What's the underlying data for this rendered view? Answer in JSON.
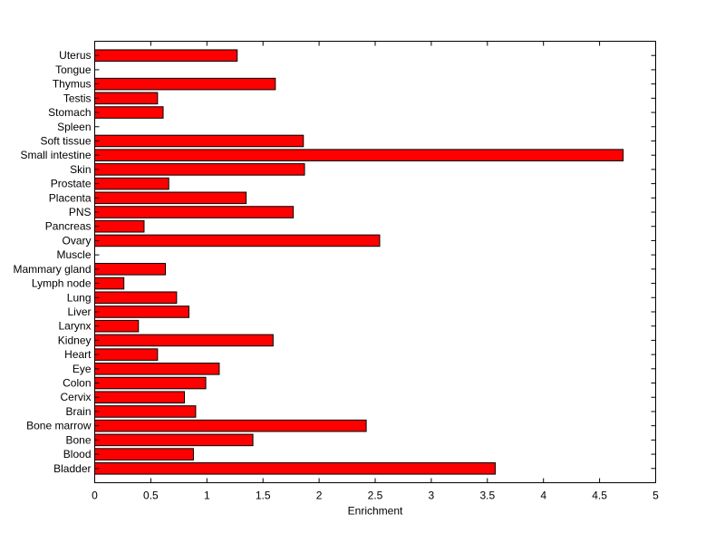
{
  "chart_data": {
    "type": "bar",
    "orientation": "horizontal",
    "title": "",
    "xlabel": "Enrichment",
    "ylabel": "",
    "xlim": [
      0,
      5
    ],
    "xticks": [
      "0",
      "0.5",
      "1",
      "1.5",
      "2",
      "2.5",
      "3",
      "3.5",
      "4",
      "4.5",
      "5"
    ],
    "grid": false,
    "legend": "none",
    "bar_color": "#ff0000",
    "edge_color": "#000000",
    "categories": [
      "Uterus",
      "Tongue",
      "Thymus",
      "Testis",
      "Stomach",
      "Spleen",
      "Soft tissue",
      "Small intestine",
      "Skin",
      "Prostate",
      "Placenta",
      "PNS",
      "Pancreas",
      "Ovary",
      "Muscle",
      "Mammary gland",
      "Lymph node",
      "Lung",
      "Liver",
      "Larynx",
      "Kidney",
      "Heart",
      "Eye",
      "Colon",
      "Cervix",
      "Brain",
      "Bone marrow",
      "Bone",
      "Blood",
      "Bladder"
    ],
    "values": [
      1.27,
      0,
      1.61,
      0.56,
      0.61,
      0,
      1.86,
      4.71,
      1.87,
      0.66,
      1.35,
      1.77,
      0.44,
      2.54,
      0,
      0.63,
      0.26,
      0.73,
      0.84,
      0.39,
      1.59,
      0.56,
      1.11,
      0.99,
      0.8,
      0.9,
      2.42,
      1.41,
      0.88,
      3.57
    ]
  }
}
